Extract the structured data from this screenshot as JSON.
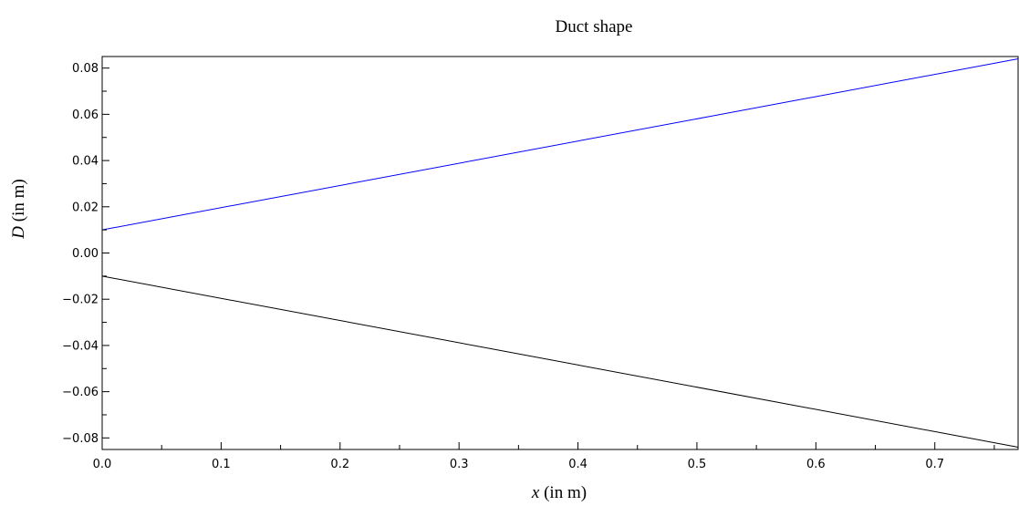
{
  "chart_data": {
    "type": "line",
    "title": "Duct shape",
    "xlabel": {
      "symbol": "x",
      "unit": " (in m)"
    },
    "ylabel": {
      "symbol": "D",
      "unit": " (in m)"
    },
    "xlim": [
      0.0,
      0.77
    ],
    "ylim": [
      -0.085,
      0.085
    ],
    "x_ticks": [
      0.0,
      0.1,
      0.2,
      0.3,
      0.4,
      0.5,
      0.6,
      0.7
    ],
    "x_tick_labels": [
      "0.0",
      "0.1",
      "0.2",
      "0.3",
      "0.4",
      "0.5",
      "0.6",
      "0.7"
    ],
    "x_minor_ticks": [
      0.05,
      0.15,
      0.25,
      0.35,
      0.45,
      0.55,
      0.65,
      0.75
    ],
    "y_ticks": [
      -0.08,
      -0.06,
      -0.04,
      -0.02,
      0.0,
      0.02,
      0.04,
      0.06,
      0.08
    ],
    "y_tick_labels": [
      "−0.08",
      "−0.06",
      "−0.04",
      "−0.02",
      "0.00",
      "0.02",
      "0.04",
      "0.06",
      "0.08"
    ],
    "y_minor_ticks": [
      -0.07,
      -0.05,
      -0.03,
      -0.01,
      0.01,
      0.03,
      0.05,
      0.07
    ],
    "grid": false,
    "legend": "none",
    "series": [
      {
        "color": "#0000ff",
        "x": [
          0.0,
          0.77
        ],
        "y": [
          0.01,
          0.084
        ]
      },
      {
        "color": "#000000",
        "x": [
          0.0,
          0.77
        ],
        "y": [
          -0.01,
          -0.084
        ]
      }
    ]
  }
}
